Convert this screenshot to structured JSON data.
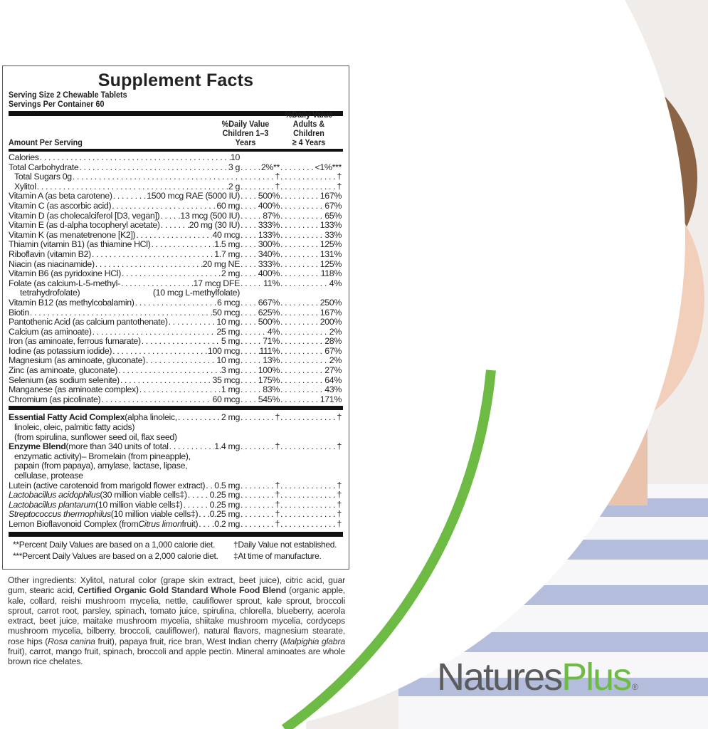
{
  "colors": {
    "brand_green": "#6dbb45",
    "brand_gray": "#5b5c5e"
  },
  "photo": {
    "subject": "smiling girl in striped shirt"
  },
  "label": {
    "title": "Supplement Facts",
    "serving_size": "Serving Size 2 Chewable Tablets",
    "servings_per_container": "Servings Per Container 60",
    "amount_per_serving": "Amount Per Serving",
    "dv_children_header": [
      "%Daily Value",
      "Children 1–3",
      "Years"
    ],
    "dv_adults_header": [
      "%Daily Value",
      "Adults & Children",
      "≥ 4 Years"
    ],
    "nutrients": [
      {
        "name": "Calories",
        "amount": "10",
        "dv_children": "",
        "dv_adults": ""
      },
      {
        "name": "Total Carbohydrate",
        "amount": "3 g",
        "dv_children": "2%**",
        "dv_adults": "<1%***"
      },
      {
        "name": "Total Sugars 0g",
        "amount": "",
        "dv_children": "†",
        "dv_adults": "†",
        "indent": true
      },
      {
        "name": "Xylitol",
        "amount": "2 g",
        "dv_children": "†",
        "dv_adults": "†",
        "indent": true
      },
      {
        "name": "Vitamin A (as beta carotene)",
        "amount": "1500 mcg RAE (5000 IU)",
        "dv_children": "500%",
        "dv_adults": "167%"
      },
      {
        "name": "Vitamin C (as ascorbic acid)",
        "amount": "60 mg",
        "dv_children": "400%",
        "dv_adults": "67%"
      },
      {
        "name": "Vitamin D (as cholecalciferol [D3, vegan])",
        "amount": "13 mcg (500 IU)",
        "dv_children": "87%",
        "dv_adults": "65%"
      },
      {
        "name": "Vitamin E (as d-alpha tocopheryl acetate)",
        "amount": "20 mg (30 IU)",
        "dv_children": "333%",
        "dv_adults": "133%"
      },
      {
        "name": "Vitamin K (as menatetrenone [K2])",
        "amount": "40 mcg",
        "dv_children": "133%",
        "dv_adults": "33%"
      },
      {
        "name": "Thiamin (vitamin B1) (as thiamine HCl)",
        "amount": "1.5 mg",
        "dv_children": "300%",
        "dv_adults": "125%"
      },
      {
        "name": "Riboflavin (vitamin B2)",
        "amount": "1.7 mg",
        "dv_children": "340%",
        "dv_adults": "131%"
      },
      {
        "name": "Niacin (as niacinamide)",
        "amount": "20 mg NE",
        "dv_children": "333%",
        "dv_adults": "125%"
      },
      {
        "name": "Vitamin B6 (as pyridoxine HCl)",
        "amount": "2 mg",
        "dv_children": "400%",
        "dv_adults": "118%"
      },
      {
        "name": "Folate (as calcium-L-5-methyl-",
        "amount": "17 mcg DFE",
        "dv_children": "11%",
        "dv_adults": "4%",
        "line2": "tetrahydrofolate)",
        "amount2": "(10 mcg L-methylfolate)"
      },
      {
        "name": "Vitamin B12 (as methylcobalamin)",
        "amount": "6 mcg",
        "dv_children": "667%",
        "dv_adults": "250%"
      },
      {
        "name": "Biotin",
        "amount": "50 mcg",
        "dv_children": "625%",
        "dv_adults": "167%"
      },
      {
        "name": "Pantothenic Acid (as calcium pantothenate)",
        "amount": "10 mg",
        "dv_children": "500%",
        "dv_adults": "200%"
      },
      {
        "name": "Calcium (as aminoate)",
        "amount": "25 mg",
        "dv_children": "4%",
        "dv_adults": "2%"
      },
      {
        "name": "Iron (as aminoate, ferrous fumarate)",
        "amount": "5 mg",
        "dv_children": "71%",
        "dv_adults": "28%"
      },
      {
        "name": "Iodine (as potassium iodide)",
        "amount": "100 mcg",
        "dv_children": "111%",
        "dv_adults": "67%"
      },
      {
        "name": "Magnesium (as aminoate, gluconate)",
        "amount": "10 mg",
        "dv_children": "13%",
        "dv_adults": "2%"
      },
      {
        "name": "Zinc (as aminoate, gluconate)",
        "amount": "3 mg",
        "dv_children": "100%",
        "dv_adults": "27%"
      },
      {
        "name": "Selenium (as sodium selenite)",
        "amount": "35 mcg",
        "dv_children": "175%",
        "dv_adults": "64%"
      },
      {
        "name": "Manganese (as aminoate complex)",
        "amount": "1 mg",
        "dv_children": "83%",
        "dv_adults": "43%"
      },
      {
        "name": "Chromium (as picolinate)",
        "amount": "60 mcg",
        "dv_children": "545%",
        "dv_adults": "171%"
      }
    ],
    "blends": [
      {
        "parts": [
          {
            "t": "Essential Fatty Acid Complex",
            "s": "bold"
          },
          {
            "t": " (alpha linoleic,",
            "s": ""
          }
        ],
        "amount": "2 mg",
        "dv_children": "†",
        "dv_adults": "†",
        "more": [
          "linoleic, oleic, palmitic fatty acids)",
          "(from spirulina, sunflower seed oil, flax seed)"
        ]
      },
      {
        "parts": [
          {
            "t": "Enzyme Blend",
            "s": "bold"
          },
          {
            "t": " (more than 340 units of total",
            "s": ""
          }
        ],
        "amount": "1.4 mg",
        "dv_children": "†",
        "dv_adults": "†",
        "more": [
          "enzymatic activity)– Bromelain (from pineapple),",
          "papain (from papaya), amylase, lactase, lipase,",
          "cellulase, protease"
        ]
      },
      {
        "parts": [
          {
            "t": "Lutein (active carotenoid from marigold flower extract)",
            "s": ""
          }
        ],
        "amount": "0.5 mg",
        "dv_children": "†",
        "dv_adults": "†"
      },
      {
        "parts": [
          {
            "t": "Lactobacillus acidophilus",
            "s": "ital"
          },
          {
            "t": " (30 million viable cells‡)",
            "s": ""
          }
        ],
        "amount": "0.25 mg",
        "dv_children": "†",
        "dv_adults": "†"
      },
      {
        "parts": [
          {
            "t": "Lactobacillus plantarum",
            "s": "ital"
          },
          {
            "t": " (10 million viable cells‡)",
            "s": ""
          }
        ],
        "amount": "0.25 mg",
        "dv_children": "†",
        "dv_adults": "†"
      },
      {
        "parts": [
          {
            "t": "Streptococcus thermophilus",
            "s": "ital"
          },
          {
            "t": " (10 million viable cells‡)",
            "s": ""
          }
        ],
        "amount": "0.25 mg",
        "dv_children": "†",
        "dv_adults": "†"
      },
      {
        "parts": [
          {
            "t": "Lemon Bioflavonoid Complex (from ",
            "s": ""
          },
          {
            "t": "Citrus limon",
            "s": "ital"
          },
          {
            "t": " fruit)",
            "s": ""
          }
        ],
        "amount": "0.2 mg",
        "dv_children": "†",
        "dv_adults": "†"
      }
    ],
    "footnotes": [
      [
        "**Percent Daily Values are based on a 1,000 calorie diet.",
        "†Daily Value not established."
      ],
      [
        "***Percent Daily Values are based on a 2,000 calorie diet.",
        "‡At time of manufacture."
      ]
    ]
  },
  "other_ingredients": [
    {
      "t": "Other ingredients: Xylitol, natural color (grape skin extract, beet juice), citric acid, guar gum, stearic acid, ",
      "s": ""
    },
    {
      "t": "Certified Organic Gold Standard Whole Food Blend",
      "s": "bold"
    },
    {
      "t": " (organic apple, kale, collard, reishi mushroom mycelia, nettle, cauliflower sprout, kale sprout, broccoli sprout, carrot root, parsley, spinach, tomato juice, spirulina, chlorella, blueberry, acerola extract, beet juice, maitake mushroom mycelia, shiitake mushroom mycelia, cordyceps mushroom mycelia, bilberry, broccoli, cauliflower), natural flavors, magnesium stearate, rose hips (",
      "s": ""
    },
    {
      "t": "Rosa canina",
      "s": "ital"
    },
    {
      "t": " fruit), papaya fruit, rice bran, West Indian cherry (",
      "s": ""
    },
    {
      "t": "Malpighia glabra",
      "s": "ital"
    },
    {
      "t": " fruit), carrot, mango fruit, spinach, broccoli and apple pectin. Mineral aminoates are whole brown rice chelates.",
      "s": ""
    }
  ],
  "logo": {
    "part1": "Natures",
    "part2": "Plus",
    "mark": "®"
  }
}
